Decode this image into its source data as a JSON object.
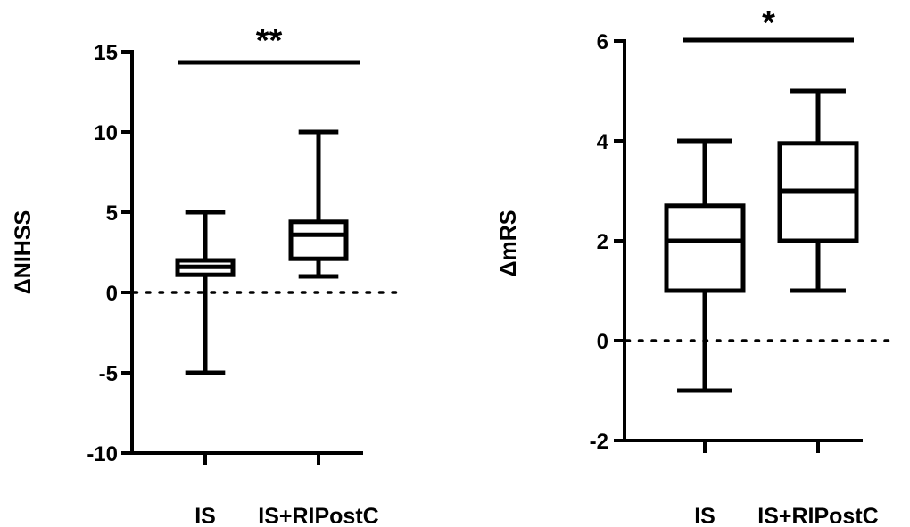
{
  "chart_data": [
    {
      "type": "boxplot",
      "ylabel": "ΔNIHSS",
      "ylim": [
        -10,
        15
      ],
      "yticks": [
        -10,
        -5,
        0,
        5,
        10,
        15
      ],
      "categories": [
        "IS",
        "IS+RIPostC"
      ],
      "reference_line": {
        "y": 0,
        "style": "dotted"
      },
      "boxes": [
        {
          "category": "IS",
          "min": -5,
          "q1": 1.1,
          "median": 1.6,
          "q3": 2.0,
          "max": 5
        },
        {
          "category": "IS+RIPostC",
          "min": 1,
          "q1": 2.1,
          "median": 3.6,
          "q3": 4.4,
          "max": 10
        }
      ],
      "significance": {
        "label": "**",
        "between": [
          "IS",
          "IS+RIPostC"
        ]
      }
    },
    {
      "type": "boxplot",
      "ylabel": "ΔmRS",
      "ylim": [
        -2,
        6
      ],
      "yticks": [
        -2,
        0,
        2,
        4,
        6
      ],
      "categories": [
        "IS",
        "IS+RIPostC"
      ],
      "reference_line": {
        "y": 0,
        "style": "dotted"
      },
      "boxes": [
        {
          "category": "IS",
          "min": -1,
          "q1": 1,
          "median": 2,
          "q3": 2.7,
          "max": 4
        },
        {
          "category": "IS+RIPostC",
          "min": 1,
          "q1": 2,
          "median": 3,
          "q3": 3.95,
          "max": 5
        }
      ],
      "significance": {
        "label": "*",
        "between": [
          "IS",
          "IS+RIPostC"
        ]
      }
    }
  ]
}
